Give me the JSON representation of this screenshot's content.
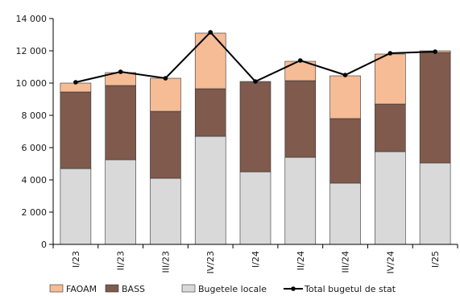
{
  "chart_data": {
    "type": "bar",
    "stacked": true,
    "categories": [
      "I/23",
      "II/23",
      "III/23",
      "IV/23",
      "I/24",
      "II/24",
      "III/24",
      "IV/24",
      "I/25"
    ],
    "series": [
      {
        "name": "Bugetele locale",
        "color": "#d9d9d9",
        "values": [
          4700,
          5250,
          4100,
          6700,
          4500,
          5400,
          3800,
          5750,
          5050
        ]
      },
      {
        "name": "BASS",
        "color": "#7f5a4d",
        "values": [
          4750,
          4600,
          4150,
          2950,
          5600,
          4750,
          4000,
          2950,
          6850
        ]
      },
      {
        "name": "FAOAM",
        "color": "#f5bc95",
        "values": [
          550,
          800,
          2050,
          3450,
          0,
          1200,
          2650,
          3100,
          100
        ]
      }
    ],
    "line": {
      "name": "Total bugetul de stat",
      "color": "#000000",
      "values": [
        10050,
        10700,
        10300,
        13150,
        10100,
        11400,
        10500,
        11850,
        11950
      ]
    },
    "ylim": [
      0,
      14000
    ],
    "yticks": [
      {
        "value": 0,
        "label": "0"
      },
      {
        "value": 2000,
        "label": "2 000"
      },
      {
        "value": 4000,
        "label": "4 000"
      },
      {
        "value": 6000,
        "label": "6 000"
      },
      {
        "value": 8000,
        "label": "8 000"
      },
      {
        "value": 10000,
        "label": "10 000"
      },
      {
        "value": 12000,
        "label": "12 000"
      },
      {
        "value": 14000,
        "label": "14 000"
      }
    ],
    "title": "",
    "xlabel": "",
    "ylabel": "",
    "grid": false,
    "legend_position": "bottom",
    "legend": [
      {
        "label": "FAOAM",
        "kind": "box",
        "color": "#f5bc95"
      },
      {
        "label": "BASS",
        "kind": "box",
        "color": "#7f5a4d"
      },
      {
        "label": "Bugetele locale",
        "kind": "box",
        "color": "#d9d9d9"
      },
      {
        "label": "Total bugetul de stat",
        "kind": "line",
        "color": "#000000"
      }
    ]
  }
}
